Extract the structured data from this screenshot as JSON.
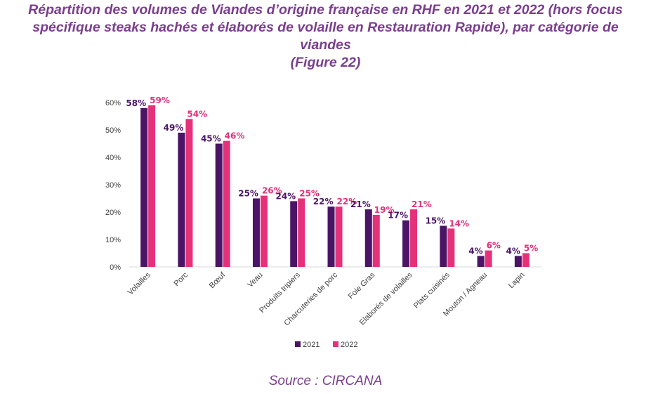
{
  "title": {
    "line1": "Répartition des volumes de Viandes d’origine française en RHF en 2021 et 2022 (hors focus",
    "line2": "spécifique steaks hachés et élaborés de volaille en Restauration Rapide), par catégorie de",
    "line3": "viandes",
    "line4": "(Figure 22)"
  },
  "source": "Source : CIRCANA",
  "colors": {
    "series_2021": "#4b1466",
    "series_2022": "#e4317a",
    "title": "#7a3e8e",
    "axis_text": "#404040"
  },
  "chart_data": {
    "type": "bar",
    "categories": [
      "Volailles",
      "Porc",
      "Bœuf",
      "Veau",
      "Produits tripiers",
      "Charcuteries de porc",
      "Foie Gras",
      "Elaborés de volailles",
      "Plats cuisinés",
      "Mouton / Agneau",
      "Lapin"
    ],
    "series": [
      {
        "name": "2021",
        "values": [
          58,
          49,
          45,
          25,
          24,
          22,
          21,
          17,
          15,
          4,
          4
        ],
        "labels": [
          "58%",
          "49%",
          "45%",
          "25%",
          "24%",
          "22%",
          "21%",
          "17%",
          "15%",
          "4%",
          "4%"
        ]
      },
      {
        "name": "2022",
        "values": [
          59,
          54,
          46,
          26,
          25,
          22,
          19,
          21,
          14,
          6,
          5
        ],
        "labels": [
          "59%",
          "54%",
          "46%",
          "26%",
          "25%",
          "22%",
          "19%",
          "21%",
          "14%",
          "6%",
          "5%"
        ]
      }
    ],
    "yticks": [
      "0%",
      "10%",
      "20%",
      "30%",
      "40%",
      "50%",
      "60%"
    ],
    "ylim": [
      0,
      60
    ],
    "grid": false,
    "legend_position": "bottom"
  }
}
